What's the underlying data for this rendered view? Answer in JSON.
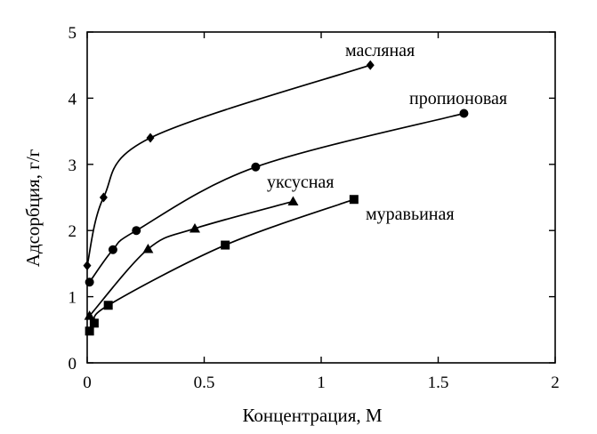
{
  "chart_data": {
    "type": "scatter",
    "xlabel": "Концентрация, М",
    "ylabel": "Адсорбция, г/г",
    "xlim": [
      0,
      2
    ],
    "ylim": [
      0,
      5
    ],
    "x_ticks": [
      "0",
      "0.5",
      "1",
      "1.5",
      "2"
    ],
    "y_ticks": [
      "0",
      "1",
      "2",
      "3",
      "4",
      "5"
    ],
    "grid": false,
    "series": [
      {
        "name": "масляная",
        "marker": "diamond",
        "points": [
          [
            0.0,
            1.47
          ],
          [
            0.07,
            2.5
          ],
          [
            0.27,
            3.4
          ],
          [
            1.21,
            4.5
          ]
        ]
      },
      {
        "name": "пропионовая",
        "marker": "circle",
        "points": [
          [
            0.01,
            1.22
          ],
          [
            0.11,
            1.71
          ],
          [
            0.21,
            2.0
          ],
          [
            0.72,
            2.96
          ],
          [
            1.61,
            3.77
          ]
        ]
      },
      {
        "name": "уксусная",
        "marker": "triangle",
        "points": [
          [
            0.01,
            0.71
          ],
          [
            0.26,
            1.72
          ],
          [
            0.46,
            2.03
          ],
          [
            0.88,
            2.44
          ]
        ]
      },
      {
        "name": "муравьиная",
        "marker": "square",
        "points": [
          [
            0.01,
            0.48
          ],
          [
            0.03,
            0.6
          ],
          [
            0.09,
            0.87
          ],
          [
            0.59,
            1.78
          ],
          [
            1.14,
            2.47
          ]
        ]
      }
    ]
  }
}
